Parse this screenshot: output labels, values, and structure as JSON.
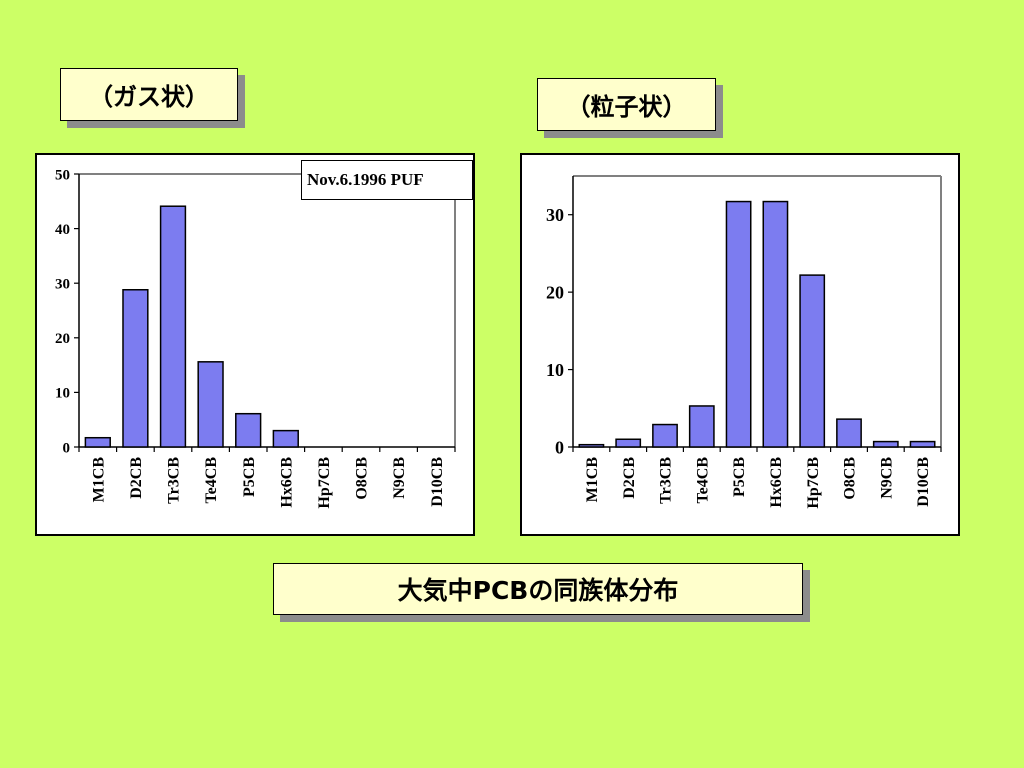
{
  "gas_label": "（ガス状）",
  "particle_label": "（粒子状）",
  "caption": "大気中PCBの同族体分布",
  "chart_data": [
    {
      "type": "bar",
      "annotation": "Nov.6.1996 PUF",
      "categories": [
        "M1CB",
        "D2CB",
        "Tr3CB",
        "Te4CB",
        "P5CB",
        "Hx6CB",
        "Hp7CB",
        "O8CB",
        "N9CB",
        "D10CB"
      ],
      "values": [
        1.7,
        28.8,
        44.1,
        15.6,
        6.1,
        3.0,
        0,
        0,
        0,
        0
      ],
      "ylim": [
        0,
        50
      ],
      "yticks": [
        0,
        10,
        20,
        30,
        40,
        50
      ],
      "bar_color": "#7c7cf0",
      "grid": false
    },
    {
      "type": "bar",
      "categories": [
        "M1CB",
        "D2CB",
        "Tr3CB",
        "Te4CB",
        "P5CB",
        "Hx6CB",
        "Hp7CB",
        "O8CB",
        "N9CB",
        "D10CB"
      ],
      "values": [
        0.3,
        1.0,
        2.9,
        5.3,
        31.7,
        31.7,
        22.2,
        3.6,
        0.7,
        0.7
      ],
      "ylim": [
        0,
        35
      ],
      "yticks": [
        0,
        10,
        20,
        30
      ],
      "bar_color": "#7c7cf0",
      "grid": false
    }
  ]
}
